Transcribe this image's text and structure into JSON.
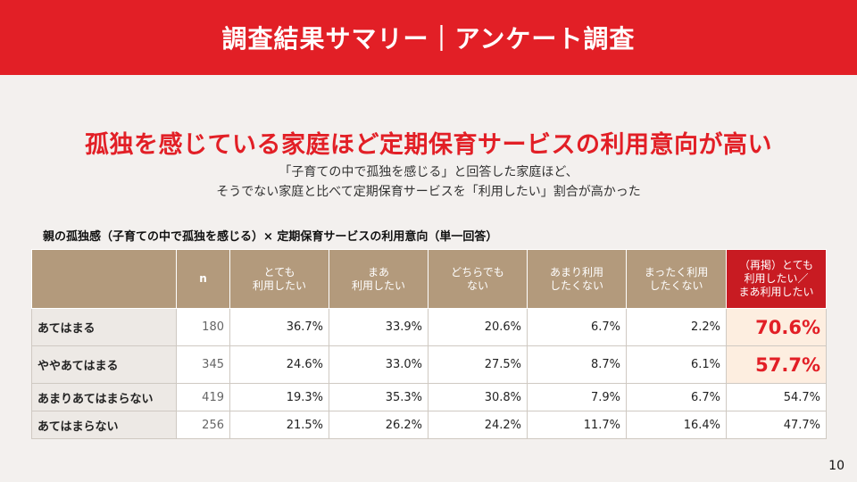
{
  "header": {
    "title": "調査結果サマリー｜アンケート調査"
  },
  "headline": "孤独を感じている家庭ほど定期保育サービスの利用意向が高い",
  "subtext": [
    "「子育ての中で孤独を感じる」と回答した家庭ほど、",
    "そうでない家庭と比べて定期保育サービスを「利用したい」割合が高かった"
  ],
  "table": {
    "title": "親の孤独感（子育ての中で孤独を感じる）× 定期保育サービスの利用意向（単一回答）",
    "columns": [
      "",
      "n",
      "とても\n利用したい",
      "まあ\n利用したい",
      "どちらでも\nない",
      "あまり利用\nしたくない",
      "まったく利用\nしたくない",
      "（再掲）とても\n利用したい／\nまあ利用したい"
    ],
    "rows": [
      {
        "label": "あてはまる",
        "n": "180",
        "values": [
          "36.7%",
          "33.9%",
          "20.6%",
          "6.7%",
          "2.2%"
        ],
        "total": "70.6%"
      },
      {
        "label": "ややあてはまる",
        "n": "345",
        "values": [
          "24.6%",
          "33.0%",
          "27.5%",
          "8.7%",
          "6.1%"
        ],
        "total": "57.7%"
      },
      {
        "label": "あまりあてはまらない",
        "n": "419",
        "values": [
          "19.3%",
          "35.3%",
          "30.8%",
          "7.9%",
          "6.7%"
        ],
        "total": "54.7%"
      },
      {
        "label": "あてはまらない",
        "n": "256",
        "values": [
          "21.5%",
          "26.2%",
          "24.2%",
          "11.7%",
          "16.4%"
        ],
        "total": "47.7%"
      }
    ]
  },
  "page_number": "10",
  "colors": {
    "brand_red": "#e21f26",
    "header_tan": "#b39a7c",
    "highlight_bg": "#fdeee0"
  }
}
